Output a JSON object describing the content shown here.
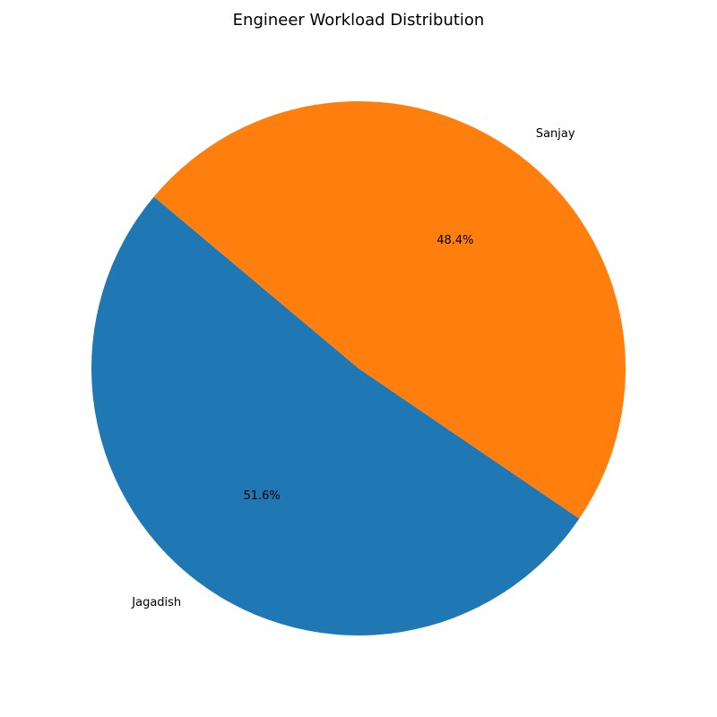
{
  "chart_data": {
    "type": "pie",
    "title": "Engineer Workload Distribution",
    "slices": [
      {
        "label": "Jagadish",
        "value": 51.6,
        "display": "51.6%",
        "color": "#1f77b4"
      },
      {
        "label": "Sanjay",
        "value": 48.4,
        "display": "48.4%",
        "color": "#ff7f0e"
      }
    ],
    "start_angle_deg": 140,
    "direction": "counterclockwise",
    "legend": "none"
  }
}
